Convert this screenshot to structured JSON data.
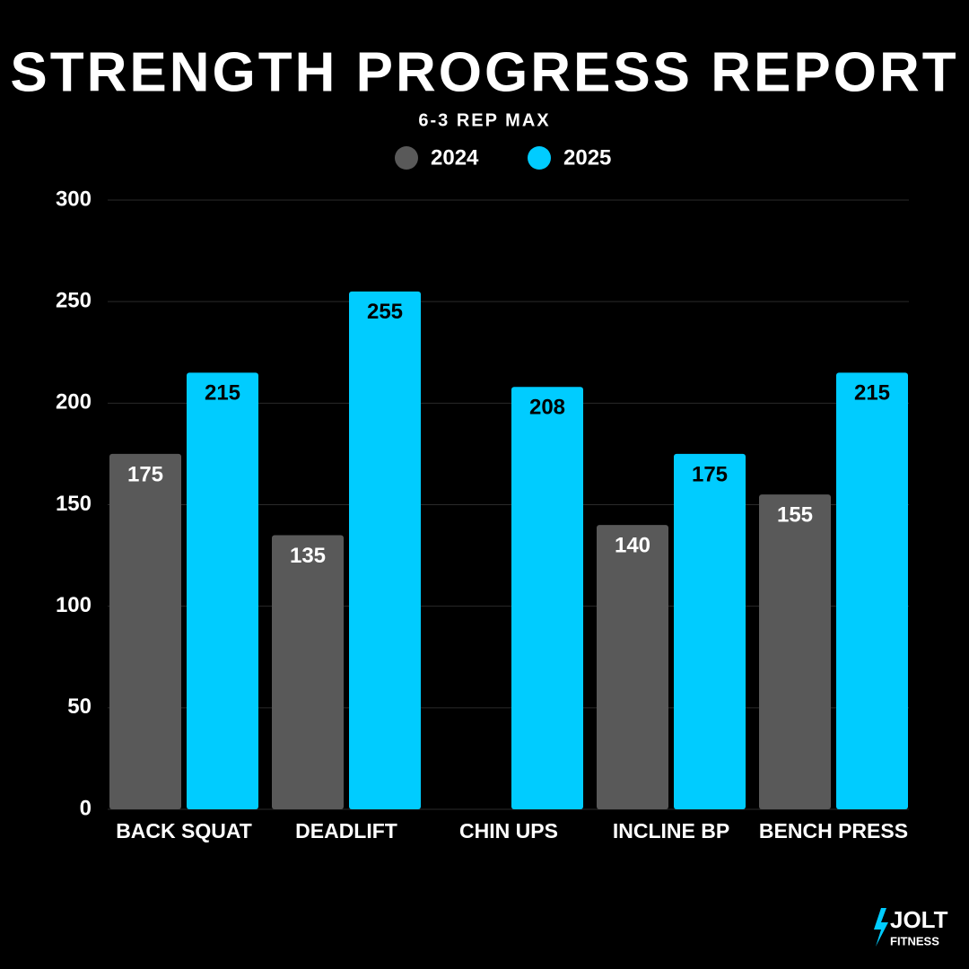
{
  "chart_data": {
    "type": "bar",
    "title": "STRENGTH PROGRESS REPORT",
    "subtitle": "6-3 REP MAX",
    "categories": [
      "BACK SQUAT",
      "DEADLIFT",
      "CHIN UPS",
      "INCLINE BP",
      "BENCH PRESS"
    ],
    "series": [
      {
        "name": "2024",
        "color": "#595959",
        "values": [
          175,
          135,
          null,
          140,
          155
        ]
      },
      {
        "name": "2025",
        "color": "#00ccff",
        "values": [
          215,
          255,
          208,
          175,
          215
        ]
      }
    ],
    "ylim": [
      0,
      300
    ],
    "yticks": [
      0,
      50,
      100,
      150,
      200,
      250,
      300
    ],
    "grid": true
  },
  "logo": {
    "name": "JOLT",
    "tagline": "FITNESS"
  }
}
